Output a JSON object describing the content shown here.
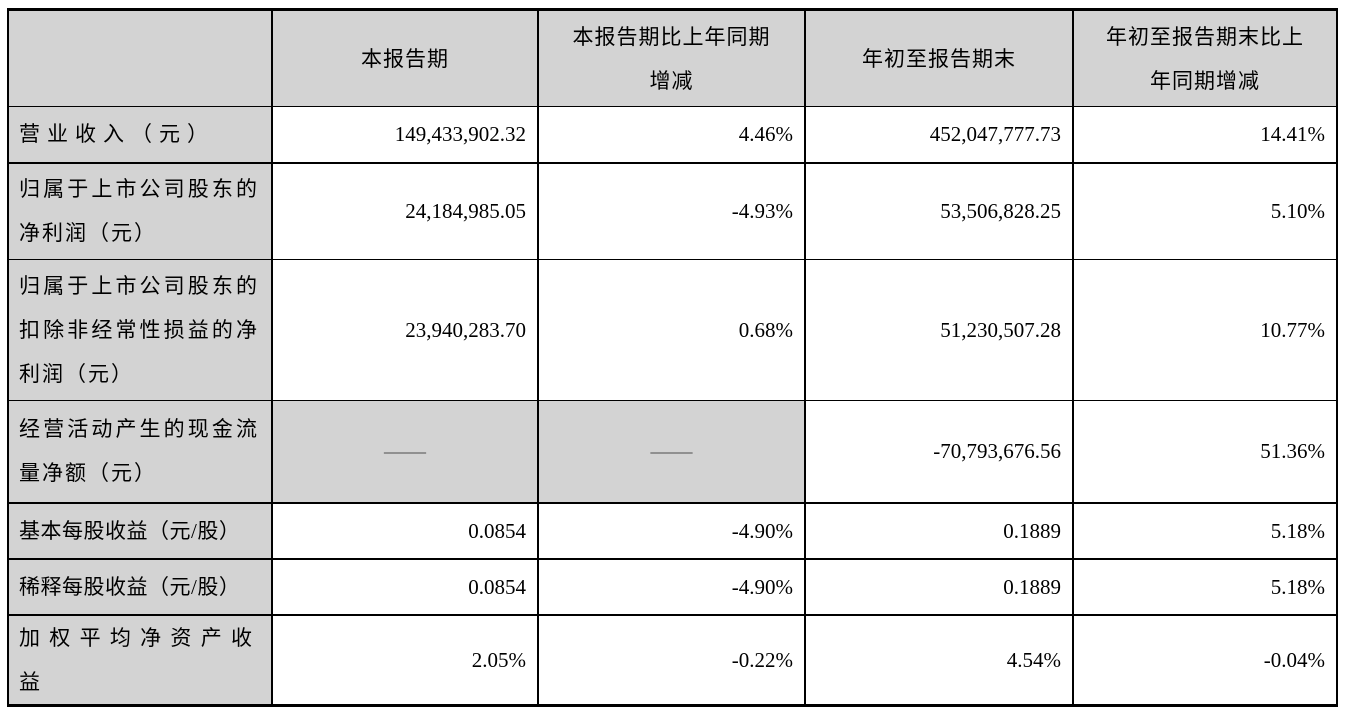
{
  "colors": {
    "border": "#000000",
    "shading": "#d3d3d3",
    "text": "#000000",
    "dash_text": "#4d4d4d",
    "background": "#ffffff"
  },
  "header": {
    "corner": "",
    "col_current": "本报告期",
    "col_current_change_line1": "本报告期比上年同期",
    "col_current_change_line2": "增减",
    "col_ytd": "年初至报告期末",
    "col_ytd_change_line1": "年初至报告期末比上",
    "col_ytd_change_line2": "年同期增减"
  },
  "rows": [
    {
      "label": "营业收入（元）",
      "current": "149,433,902.32",
      "current_change": "4.46%",
      "ytd": "452,047,777.73",
      "ytd_change": "14.41%"
    },
    {
      "label": "归属于上市公司股东的净利润（元）",
      "current": "24,184,985.05",
      "current_change": "-4.93%",
      "ytd": "53,506,828.25",
      "ytd_change": "5.10%"
    },
    {
      "label": "归属于上市公司股东的扣除非经常性损益的净利润（元）",
      "current": "23,940,283.70",
      "current_change": "0.68%",
      "ytd": "51,230,507.28",
      "ytd_change": "10.77%"
    },
    {
      "label": "经营活动产生的现金流量净额（元）",
      "current": "——",
      "current_change": "——",
      "ytd": "-70,793,676.56",
      "ytd_change": "51.36%"
    },
    {
      "label": "基本每股收益（元/股）",
      "current": "0.0854",
      "current_change": "-4.90%",
      "ytd": "0.1889",
      "ytd_change": "5.18%"
    },
    {
      "label": "稀释每股收益（元/股）",
      "current": "0.0854",
      "current_change": "-4.90%",
      "ytd": "0.1889",
      "ytd_change": "5.18%"
    },
    {
      "label": "加权平均净资产收益",
      "current": "2.05%",
      "current_change": "-0.22%",
      "ytd": "4.54%",
      "ytd_change": "-0.04%"
    }
  ]
}
